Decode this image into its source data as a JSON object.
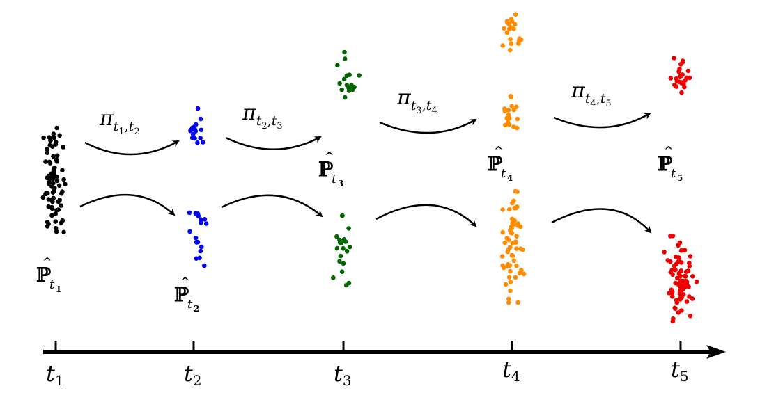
{
  "timeline": {
    "ticks": [
      {
        "label": "t",
        "sub": "1"
      },
      {
        "label": "t",
        "sub": "2"
      },
      {
        "label": "t",
        "sub": "3"
      },
      {
        "label": "t",
        "sub": "4"
      },
      {
        "label": "t",
        "sub": "5"
      }
    ]
  },
  "distributions": [
    {
      "symbol": "ℙ",
      "hat": "^",
      "sub_t": "t",
      "sub_i": "1",
      "color": "#000000"
    },
    {
      "symbol": "ℙ",
      "hat": "^",
      "sub_t": "t",
      "sub_i": "2",
      "color": "#0000ee"
    },
    {
      "symbol": "ℙ",
      "hat": "^",
      "sub_t": "t",
      "sub_i": "3",
      "color": "#006400"
    },
    {
      "symbol": "ℙ",
      "hat": "^",
      "sub_t": "t",
      "sub_i": "4",
      "color": "#ff8c00"
    },
    {
      "symbol": "ℙ",
      "hat": "^",
      "sub_t": "t",
      "sub_i": "5",
      "color": "#ee0000"
    }
  ],
  "transports": [
    {
      "symbol": "π",
      "a": "t",
      "a_sub": "1",
      "sep": ",",
      "b": "t",
      "b_sub": "2"
    },
    {
      "symbol": "π",
      "a": "t",
      "a_sub": "2",
      "sep": ",",
      "b": "t",
      "b_sub": "3"
    },
    {
      "symbol": "π",
      "a": "t",
      "a_sub": "3",
      "sep": ",",
      "b": "t",
      "b_sub": "4"
    },
    {
      "symbol": "π",
      "a": "t",
      "a_sub": "4",
      "sep": ",",
      "b": "t",
      "b_sub": "5"
    }
  ]
}
